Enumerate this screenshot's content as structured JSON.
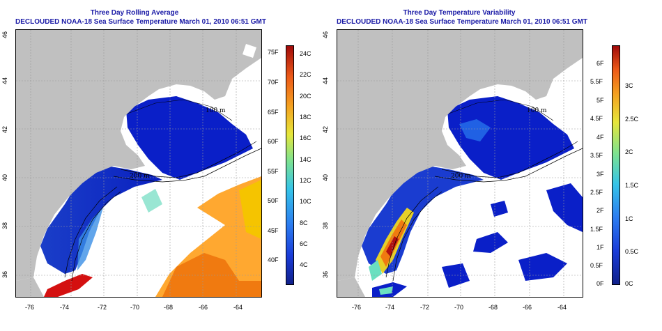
{
  "panels": [
    {
      "title": "Three Day Rolling Average",
      "subtitle": "DECLOUDED NOAA-18 Sea Surface Temperature March 01, 2010 06:51 GMT",
      "colorbar_left_labels": [
        "75F",
        "70F",
        "65F",
        "60F",
        "55F",
        "50F",
        "45F",
        "40F"
      ],
      "colorbar_right_labels": [
        "24C",
        "22C",
        "20C",
        "18C",
        "16C",
        "14C",
        "12C",
        "10C",
        "8C",
        "6C",
        "4C"
      ]
    },
    {
      "title": "Three Day Temperature Variability",
      "subtitle": "DECLOUDED NOAA-18 Sea Surface Temperature March 01, 2010 06:51 GMT",
      "colorbar_left_labels": [
        "6F",
        "5.5F",
        "5F",
        "4.5F",
        "4F",
        "3.5F",
        "3F",
        "2.5F",
        "2F",
        "1.5F",
        "1F",
        "0.5F",
        "0F"
      ],
      "colorbar_right_labels": [
        "3C",
        "2.5C",
        "2C",
        "1.5C",
        "1C",
        "0.5C",
        "0C"
      ]
    }
  ],
  "x_ticks": [
    "-76",
    "-74",
    "-72",
    "-70",
    "-68",
    "-66",
    "-64"
  ],
  "y_ticks": [
    "46",
    "44",
    "42",
    "40",
    "38",
    "36"
  ],
  "contour_labels": [
    "100 m",
    "200 m",
    "200 m",
    "100 m"
  ],
  "colors": {
    "land": "#c0c0c0",
    "title_blue": "#1a1aa6"
  }
}
